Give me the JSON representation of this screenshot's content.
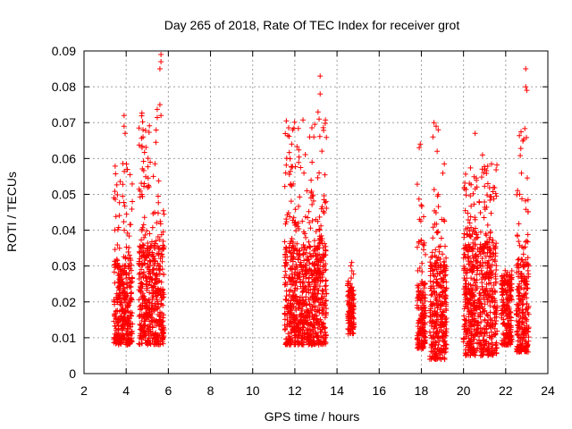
{
  "chart_data": {
    "type": "scatter",
    "title": "Day 265 of 2018, Rate Of TEC Index for receiver grot",
    "xlabel": "GPS time / hours",
    "ylabel": "ROTI / TECUs",
    "xlim": [
      2,
      24
    ],
    "ylim": [
      0,
      0.09
    ],
    "x_ticks": [
      "2",
      "4",
      "6",
      "8",
      "10",
      "12",
      "14",
      "16",
      "18",
      "20",
      "22",
      "24"
    ],
    "y_ticks": [
      "0",
      "0.01",
      "0.02",
      "0.03",
      "0.04",
      "0.05",
      "0.06",
      "0.07",
      "0.08",
      "0.09"
    ],
    "grid": true,
    "marker": "+",
    "color": "#ff0000",
    "clusters": [
      {
        "x_start": 3.4,
        "x_end": 4.3,
        "y_typical_low": 0.008,
        "y_typical_high": 0.03,
        "y_max": 0.072
      },
      {
        "x_start": 4.6,
        "x_end": 5.8,
        "y_typical_low": 0.008,
        "y_typical_high": 0.035,
        "y_max": 0.089
      },
      {
        "x_start": 11.5,
        "x_end": 13.5,
        "y_typical_low": 0.008,
        "y_typical_high": 0.035,
        "y_max": 0.083
      },
      {
        "x_start": 14.5,
        "x_end": 14.8,
        "y_typical_low": 0.011,
        "y_typical_high": 0.023,
        "y_max": 0.031
      },
      {
        "x_start": 17.8,
        "x_end": 18.2,
        "y_typical_low": 0.007,
        "y_typical_high": 0.025,
        "y_max": 0.064
      },
      {
        "x_start": 18.4,
        "x_end": 19.2,
        "y_typical_low": 0.004,
        "y_typical_high": 0.03,
        "y_max": 0.07
      },
      {
        "x_start": 20.0,
        "x_end": 21.6,
        "y_typical_low": 0.005,
        "y_typical_high": 0.035,
        "y_max": 0.067
      },
      {
        "x_start": 21.8,
        "x_end": 22.3,
        "y_typical_low": 0.008,
        "y_typical_high": 0.025,
        "y_max": 0.03
      },
      {
        "x_start": 22.5,
        "x_end": 23.1,
        "y_typical_low": 0.006,
        "y_typical_high": 0.03,
        "y_max": 0.085
      }
    ],
    "notable_points": [
      {
        "x": 5.65,
        "y": 0.089
      },
      {
        "x": 5.65,
        "y": 0.087
      },
      {
        "x": 5.6,
        "y": 0.085
      },
      {
        "x": 5.6,
        "y": 0.075
      },
      {
        "x": 5.65,
        "y": 0.072
      },
      {
        "x": 3.9,
        "y": 0.072
      },
      {
        "x": 3.9,
        "y": 0.069
      },
      {
        "x": 3.95,
        "y": 0.067
      },
      {
        "x": 4.8,
        "y": 0.068
      },
      {
        "x": 4.8,
        "y": 0.066
      },
      {
        "x": 4.75,
        "y": 0.063
      },
      {
        "x": 13.2,
        "y": 0.083
      },
      {
        "x": 13.2,
        "y": 0.078
      },
      {
        "x": 13.1,
        "y": 0.073
      },
      {
        "x": 13.15,
        "y": 0.071
      },
      {
        "x": 12.9,
        "y": 0.066
      },
      {
        "x": 12.7,
        "y": 0.066
      },
      {
        "x": 11.9,
        "y": 0.068
      },
      {
        "x": 11.85,
        "y": 0.064
      },
      {
        "x": 17.95,
        "y": 0.064
      },
      {
        "x": 17.9,
        "y": 0.063
      },
      {
        "x": 18.6,
        "y": 0.07
      },
      {
        "x": 18.7,
        "y": 0.069
      },
      {
        "x": 18.8,
        "y": 0.068
      },
      {
        "x": 18.55,
        "y": 0.066
      },
      {
        "x": 18.75,
        "y": 0.062
      },
      {
        "x": 20.55,
        "y": 0.067
      },
      {
        "x": 20.9,
        "y": 0.061
      },
      {
        "x": 20.95,
        "y": 0.056
      },
      {
        "x": 22.95,
        "y": 0.085
      },
      {
        "x": 22.95,
        "y": 0.08
      },
      {
        "x": 23.0,
        "y": 0.079
      },
      {
        "x": 14.7,
        "y": 0.031
      },
      {
        "x": 14.65,
        "y": 0.03
      },
      {
        "x": 18.7,
        "y": 0.004
      }
    ]
  }
}
